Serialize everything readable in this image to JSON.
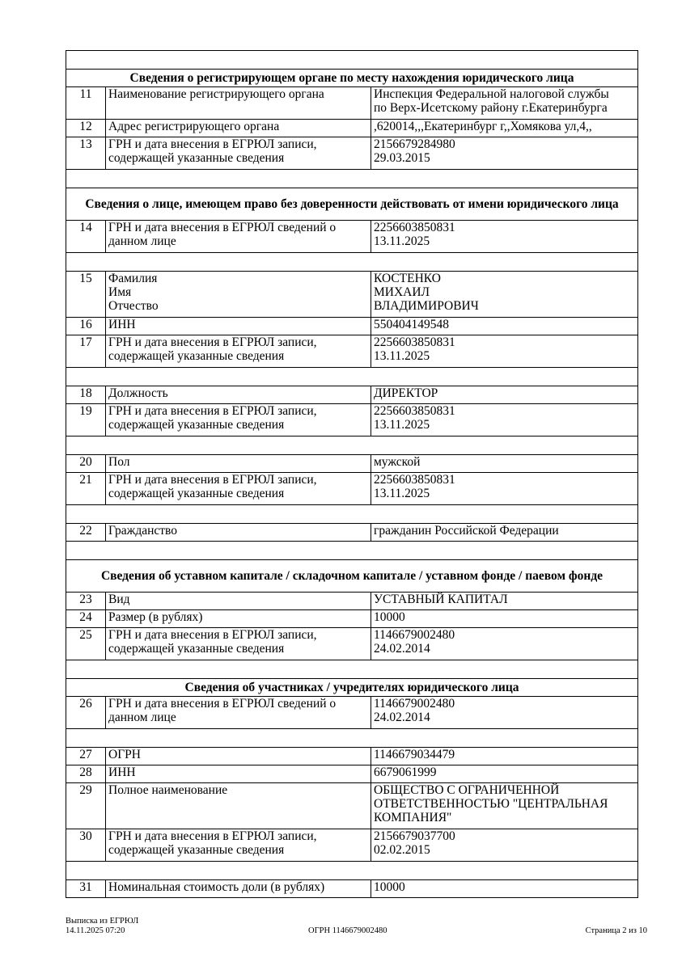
{
  "sections": [
    {
      "type": "blank"
    },
    {
      "type": "header",
      "text": "Сведения о регистрирующем органе по месту нахождения юридического лица"
    },
    {
      "type": "row",
      "num": "11",
      "label": "Наименование регистрирующего органа",
      "value": "Инспекция Федеральной налоговой службы\nпо Верх-Исетскому району г.Екатеринбурга"
    },
    {
      "type": "row",
      "num": "12",
      "label": "Адрес регистрирующего органа",
      "value": ",620014,,,Екатеринбург г,,Хомякова ул,4,,"
    },
    {
      "type": "row",
      "num": "13",
      "label": "ГРН и дата внесения в ЕГРЮЛ записи,\nсодержащей указанные сведения",
      "value": "2156679284980\n29.03.2015"
    },
    {
      "type": "blank"
    },
    {
      "type": "header",
      "text": "Сведения о лице, имеющем право без доверенности действовать от имени юридического лица"
    },
    {
      "type": "row",
      "num": "14",
      "label": "ГРН и дата внесения в ЕГРЮЛ сведений о\nданном лице",
      "value": "2256603850831\n13.11.2025"
    },
    {
      "type": "blank"
    },
    {
      "type": "row",
      "num": "15",
      "label": "Фамилия\nИмя\nОтчество",
      "value": "КОСТЕНКО\nМИХАИЛ\nВЛАДИМИРОВИЧ"
    },
    {
      "type": "row",
      "num": "16",
      "label": "ИНН",
      "value": "550404149548"
    },
    {
      "type": "row",
      "num": "17",
      "label": "ГРН и дата внесения в ЕГРЮЛ записи,\nсодержащей указанные сведения",
      "value": "2256603850831\n13.11.2025"
    },
    {
      "type": "blank"
    },
    {
      "type": "row",
      "num": "18",
      "label": "Должность",
      "value": "ДИРЕКТОР"
    },
    {
      "type": "row",
      "num": "19",
      "label": "ГРН и дата внесения в ЕГРЮЛ записи,\nсодержащей указанные сведения",
      "value": "2256603850831\n13.11.2025"
    },
    {
      "type": "blank"
    },
    {
      "type": "row",
      "num": "20",
      "label": "Пол",
      "value": "мужской"
    },
    {
      "type": "row",
      "num": "21",
      "label": "ГРН и дата внесения в ЕГРЮЛ записи,\nсодержащей указанные сведения",
      "value": "2256603850831\n13.11.2025"
    },
    {
      "type": "blank"
    },
    {
      "type": "row",
      "num": "22",
      "label": "Гражданство",
      "value": "гражданин Российской Федерации"
    },
    {
      "type": "blank"
    },
    {
      "type": "header",
      "text": "Сведения об уставном капитале / складочном капитале / уставном фонде / паевом фонде"
    },
    {
      "type": "row",
      "num": "23",
      "label": "Вид",
      "value": "УСТАВНЫЙ КАПИТАЛ"
    },
    {
      "type": "row",
      "num": "24",
      "label": "Размер (в рублях)",
      "value": "10000"
    },
    {
      "type": "row",
      "num": "25",
      "label": "ГРН и дата внесения в ЕГРЮЛ записи,\nсодержащей указанные сведения",
      "value": "1146679002480\n24.02.2014"
    },
    {
      "type": "blank"
    },
    {
      "type": "header",
      "text": "Сведения об участниках / учредителях юридического лица"
    },
    {
      "type": "row",
      "num": "26",
      "label": "ГРН и дата внесения в ЕГРЮЛ сведений о\nданном лице",
      "value": "1146679002480\n24.02.2014"
    },
    {
      "type": "blank"
    },
    {
      "type": "row",
      "num": "27",
      "label": "ОГРН",
      "value": "1146679034479"
    },
    {
      "type": "row",
      "num": "28",
      "label": "ИНН",
      "value": "6679061999"
    },
    {
      "type": "row",
      "num": "29",
      "label": "Полное наименование",
      "value": "ОБЩЕСТВО С ОГРАНИЧЕННОЙ\nОТВЕТСТВЕННОСТЬЮ \"ЦЕНТРАЛЬНАЯ\nКОМПАНИЯ\""
    },
    {
      "type": "row",
      "num": "30",
      "label": "ГРН и дата внесения в ЕГРЮЛ записи,\nсодержащей указанные сведения",
      "value": "2156679037700\n02.02.2015"
    },
    {
      "type": "blank"
    },
    {
      "type": "row",
      "num": "31",
      "label": "Номинальная стоимость доли (в рублях)",
      "value": "10000"
    }
  ],
  "footer": {
    "doc_title": "Выписка из ЕГРЮЛ",
    "datetime": "14.11.2025 07:20",
    "ogrn": "ОГРН 1146679002480",
    "page": "Страница 2 из 10"
  }
}
